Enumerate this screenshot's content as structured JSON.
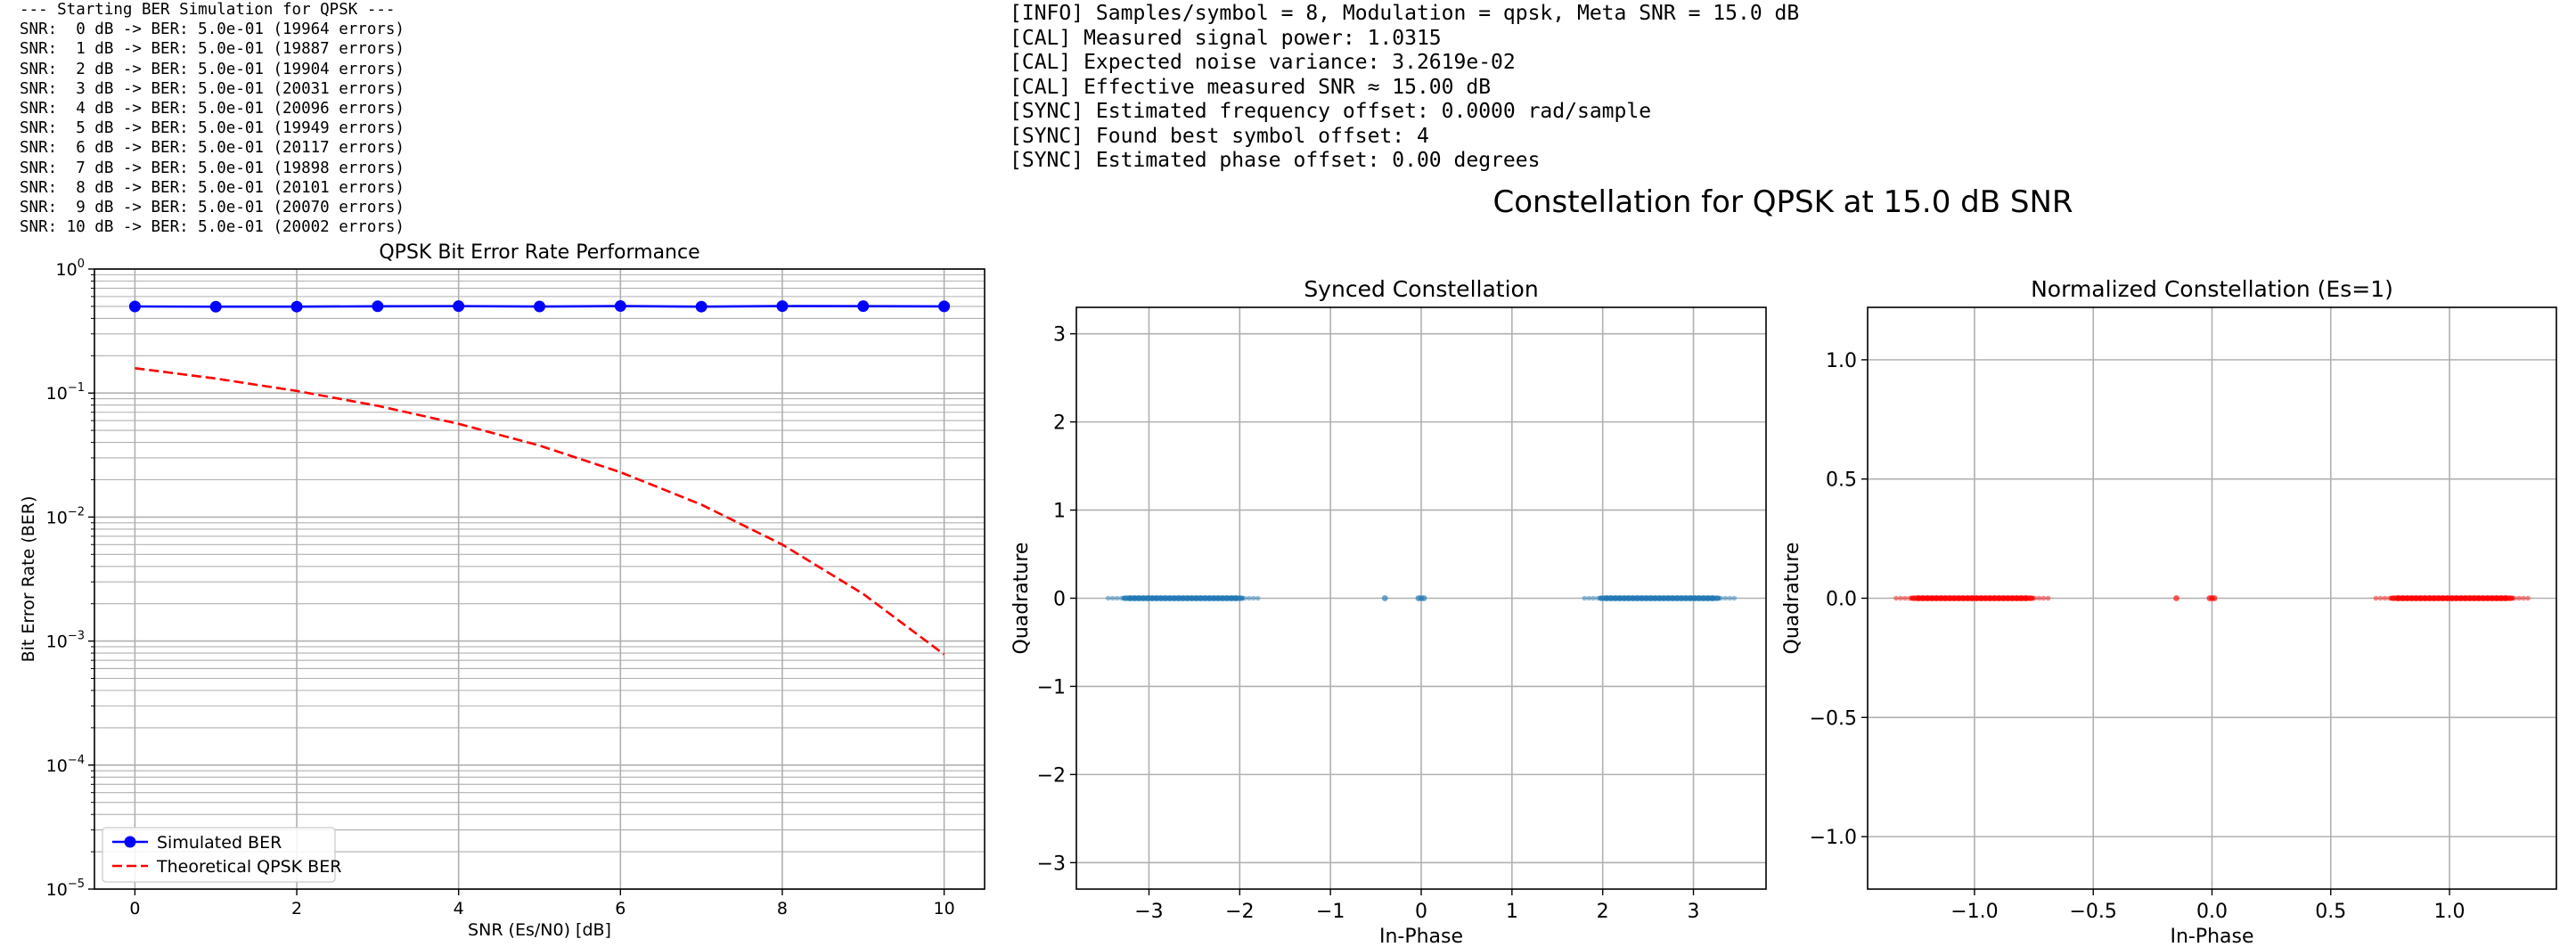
{
  "console_left": {
    "lines": [
      "--- Starting BER Simulation for QPSK ---",
      "SNR:  0 dB -> BER: 5.0e-01 (19964 errors)",
      "SNR:  1 dB -> BER: 5.0e-01 (19887 errors)",
      "SNR:  2 dB -> BER: 5.0e-01 (19904 errors)",
      "SNR:  3 dB -> BER: 5.0e-01 (20031 errors)",
      "SNR:  4 dB -> BER: 5.0e-01 (20096 errors)",
      "SNR:  5 dB -> BER: 5.0e-01 (19949 errors)",
      "SNR:  6 dB -> BER: 5.0e-01 (20117 errors)",
      "SNR:  7 dB -> BER: 5.0e-01 (19898 errors)",
      "SNR:  8 dB -> BER: 5.0e-01 (20101 errors)",
      "SNR:  9 dB -> BER: 5.0e-01 (20070 errors)",
      "SNR: 10 dB -> BER: 5.0e-01 (20002 errors)"
    ]
  },
  "console_right": {
    "lines": [
      "[INFO] Samples/symbol = 8, Modulation = qpsk, Meta SNR = 15.0 dB",
      "[CAL] Measured signal power: 1.0315",
      "[CAL] Expected noise variance: 3.2619e-02",
      "[CAL] Effective measured SNR ≈ 15.00 dB",
      "[SYNC] Estimated frequency offset: 0.0000 rad/sample",
      "[SYNC] Found best symbol offset: 4",
      "[SYNC] Estimated phase offset: 0.00 degrees"
    ]
  },
  "figure_title": "Constellation for QPSK at 15.0 dB SNR",
  "chart_data": [
    {
      "type": "line",
      "title": "QPSK Bit Error Rate Performance",
      "xlabel": "SNR (Es/N0) [dB]",
      "ylabel": "Bit Error Rate (BER)",
      "yscale": "log",
      "xlim": [
        -0.5,
        10.5
      ],
      "ylim": [
        1e-05,
        1
      ],
      "xticks": [
        0,
        2,
        4,
        6,
        8,
        10
      ],
      "yticks": [
        1e-05,
        0.0001,
        0.001,
        0.01,
        0.1,
        1
      ],
      "ytick_labels": [
        {
          "base": "10",
          "exp": "−5"
        },
        {
          "base": "10",
          "exp": "−4"
        },
        {
          "base": "10",
          "exp": "−3"
        },
        {
          "base": "10",
          "exp": "−2"
        },
        {
          "base": "10",
          "exp": "−1"
        },
        {
          "base": "10",
          "exp": "0"
        }
      ],
      "grid": true,
      "legend_position": "lower-left",
      "x": [
        0,
        1,
        2,
        3,
        4,
        5,
        6,
        7,
        8,
        9,
        10
      ],
      "series": [
        {
          "name": "Simulated BER",
          "color": "#0000ff",
          "style": "solid",
          "marker": "circle",
          "values": [
            0.4991,
            0.4972,
            0.4976,
            0.5008,
            0.5024,
            0.4987,
            0.5029,
            0.4975,
            0.5025,
            0.5018,
            0.5001
          ]
        },
        {
          "name": "Theoretical QPSK BER",
          "color": "#ff0000",
          "style": "dashed",
          "marker": "none",
          "values": [
            0.1587,
            0.1309,
            0.104,
            0.0789,
            0.0565,
            0.0377,
            0.023,
            0.0126,
            0.006,
            0.0024,
            0.00078
          ]
        }
      ]
    },
    {
      "type": "scatter",
      "title": "Synced Constellation",
      "xlabel": "In-Phase",
      "ylabel": "Quadrature",
      "xlim": [
        -3.8,
        3.8
      ],
      "ylim": [
        -3.3,
        3.3
      ],
      "xticks": [
        -3,
        -2,
        -1,
        0,
        1,
        2,
        3
      ],
      "yticks": [
        -3,
        -2,
        -1,
        0,
        1,
        2,
        3
      ],
      "grid": true,
      "series": [
        {
          "color": "#1f77b4",
          "clusters": [
            {
              "x_min": -3.45,
              "x_max": -1.8,
              "y": 0
            },
            {
              "x_min": 1.8,
              "x_max": 3.45,
              "y": 0
            }
          ],
          "points": [
            [
              -0.4,
              0
            ],
            [
              0.0,
              0
            ],
            [
              0.03,
              0
            ],
            [
              -0.03,
              0
            ]
          ]
        }
      ]
    },
    {
      "type": "scatter",
      "title": "Normalized Constellation (Es=1)",
      "xlabel": "In-Phase",
      "ylabel": "Quadrature",
      "xlim": [
        -1.45,
        1.45
      ],
      "ylim": [
        -1.22,
        1.22
      ],
      "xticks": [
        -1.0,
        -0.5,
        0.0,
        0.5,
        1.0
      ],
      "yticks": [
        -1.0,
        -0.5,
        0.0,
        0.5,
        1.0
      ],
      "grid": true,
      "series": [
        {
          "color": "#ff0000",
          "clusters": [
            {
              "x_min": -1.33,
              "x_max": -0.69,
              "y": 0
            },
            {
              "x_min": 0.69,
              "x_max": 1.33,
              "y": 0
            }
          ],
          "points": [
            [
              -0.15,
              0
            ],
            [
              0.0,
              0
            ],
            [
              0.01,
              0
            ],
            [
              -0.01,
              0
            ]
          ]
        }
      ]
    }
  ]
}
